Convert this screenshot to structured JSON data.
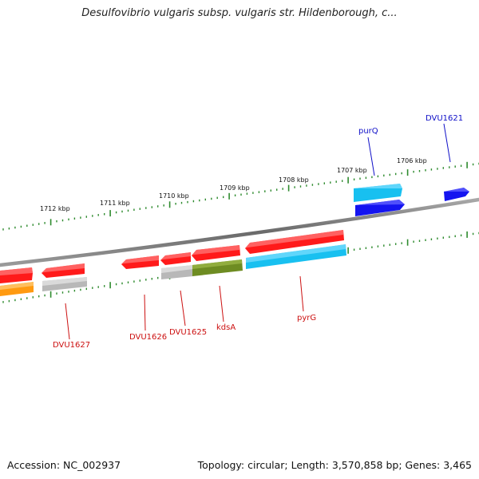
{
  "title": "Desulfovibrio vulgaris subsp. vulgaris str. Hildenborough, c...",
  "footer": {
    "accession": "Accession: NC_002937",
    "summary": "Topology: circular; Length: 3,570,858 bp; Genes: 3,465"
  },
  "colors": {
    "backbone": "#7f7f7f",
    "tick": "#2e8b2e",
    "forward_label": "#1010c8",
    "reverse_label": "#cc1010",
    "red": "#ff1a1a",
    "cyan": "#18c0f0",
    "blue": "#1414f0",
    "grey": "#b8b8b8",
    "olive": "#6e8c22",
    "orange": "#ff9a10"
  },
  "kbp_labels": [
    "1712 kbp",
    "1711 kbp",
    "1710 kbp",
    "1709 kbp",
    "1708 kbp",
    "1707 kbp",
    "1706 kbp"
  ],
  "gene_labels": {
    "purQ": "purQ",
    "DVU1621": "DVU1621",
    "DVU1627": "DVU1627",
    "DVU1626": "DVU1626",
    "DVU1625": "DVU1625",
    "kdsA": "kdsA",
    "pyrG": "pyrG"
  }
}
